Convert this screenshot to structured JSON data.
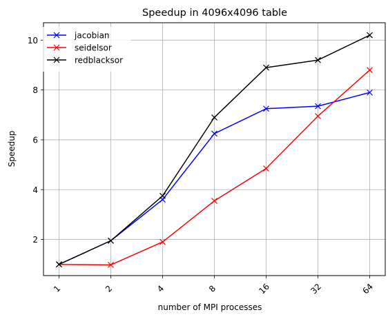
{
  "chart_data": {
    "type": "line",
    "title": "Speedup in 4096x4096 table",
    "xlabel": "number of MPI processes",
    "ylabel": "Speedup",
    "categories": [
      "1",
      "2",
      "4",
      "8",
      "16",
      "32",
      "64"
    ],
    "yticks": [
      2,
      4,
      6,
      8,
      10
    ],
    "ylim": [
      0.55,
      10.7
    ],
    "grid": true,
    "legend_position": "top-left",
    "marker": "x",
    "series": [
      {
        "name": "jacobian",
        "color": "#0000ff",
        "values": [
          1.0,
          1.95,
          3.6,
          6.25,
          7.25,
          7.35,
          7.9
        ]
      },
      {
        "name": "seidelsor",
        "color": "#ff0000",
        "values": [
          1.0,
          0.98,
          1.9,
          3.55,
          4.85,
          6.95,
          8.8
        ]
      },
      {
        "name": "redblacksor",
        "color": "#000000",
        "values": [
          1.0,
          1.95,
          3.75,
          6.9,
          8.9,
          9.2,
          10.2
        ]
      }
    ]
  }
}
